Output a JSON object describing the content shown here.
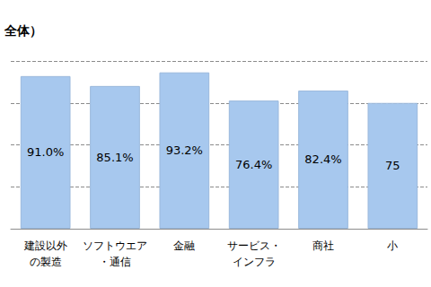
{
  "chart_data": {
    "type": "bar",
    "title": "全体）",
    "categories": [
      "建設以外\nの製造",
      "ソフトウエア\n・通信",
      "金融",
      "サービス・\nインフラ",
      "商社",
      "小"
    ],
    "values": [
      91.0,
      85.1,
      93.2,
      76.4,
      82.4,
      75
    ],
    "value_labels": [
      "91.0%",
      "85.1%",
      "93.2%",
      "76.4%",
      "82.4%",
      "75"
    ],
    "color": "#a7c8ee",
    "ylim": [
      0,
      100
    ],
    "yticks": [
      0,
      25,
      50,
      75,
      100
    ],
    "grid": true,
    "data_labels": true,
    "tick_labels": "x"
  }
}
